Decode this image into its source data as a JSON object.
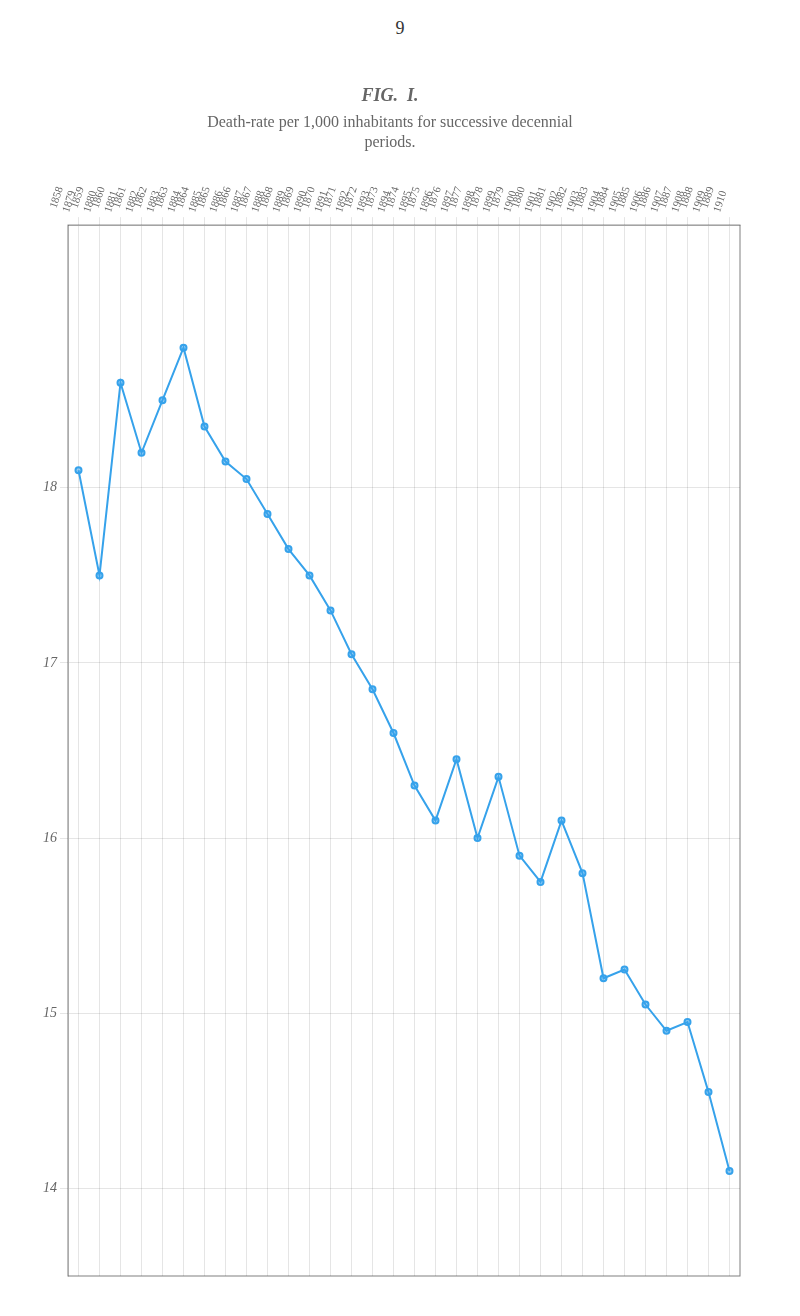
{
  "chart_data": {
    "type": "line",
    "page_number": "9",
    "title": "FIG.  I.",
    "subtitle": [
      "Death-rate per 1,000 inhabitants for successive decennial",
      "periods."
    ],
    "categories": [
      [
        "1858",
        "1879"
      ],
      [
        "1859",
        "1880"
      ],
      [
        "1860",
        "1881"
      ],
      [
        "1861",
        "1882"
      ],
      [
        "1862",
        "1883"
      ],
      [
        "1863",
        "1884"
      ],
      [
        "1864",
        "1885"
      ],
      [
        "1865",
        "1886"
      ],
      [
        "1866",
        "1887"
      ],
      [
        "1867",
        "1888"
      ],
      [
        "1868",
        "1889"
      ],
      [
        "1869",
        "1890"
      ],
      [
        "1870",
        "1891"
      ],
      [
        "1871",
        "1892"
      ],
      [
        "1872",
        "1893"
      ],
      [
        "1873",
        "1894"
      ],
      [
        "1874",
        "1895"
      ],
      [
        "1875",
        "1896"
      ],
      [
        "1876",
        "1897"
      ],
      [
        "1877",
        "1898"
      ],
      [
        "1878",
        "1899"
      ],
      [
        "1879",
        "1900"
      ],
      [
        "1880",
        "1901"
      ],
      [
        "1881",
        "1902"
      ],
      [
        "1882",
        "1903"
      ],
      [
        "1883",
        "1904"
      ],
      [
        "1884",
        "1905"
      ],
      [
        "1885",
        "1906"
      ],
      [
        "1886",
        "1907"
      ],
      [
        "1887",
        "1908"
      ],
      [
        "1888",
        "1909"
      ],
      [
        "1889",
        "1910"
      ]
    ],
    "values": [
      18.1,
      17.5,
      18.6,
      18.2,
      18.5,
      18.8,
      18.35,
      18.15,
      18.05,
      17.85,
      17.65,
      17.5,
      17.3,
      17.05,
      16.85,
      16.6,
      16.3,
      16.1,
      16.45,
      16.0,
      16.35,
      15.9,
      15.75,
      16.1,
      15.8,
      15.2,
      15.25,
      15.05,
      14.9,
      14.95,
      14.55,
      14.1
    ],
    "ylim": [
      13.5,
      19.5
    ],
    "yticks": [
      14,
      15,
      16,
      17,
      18
    ],
    "grid": true
  }
}
